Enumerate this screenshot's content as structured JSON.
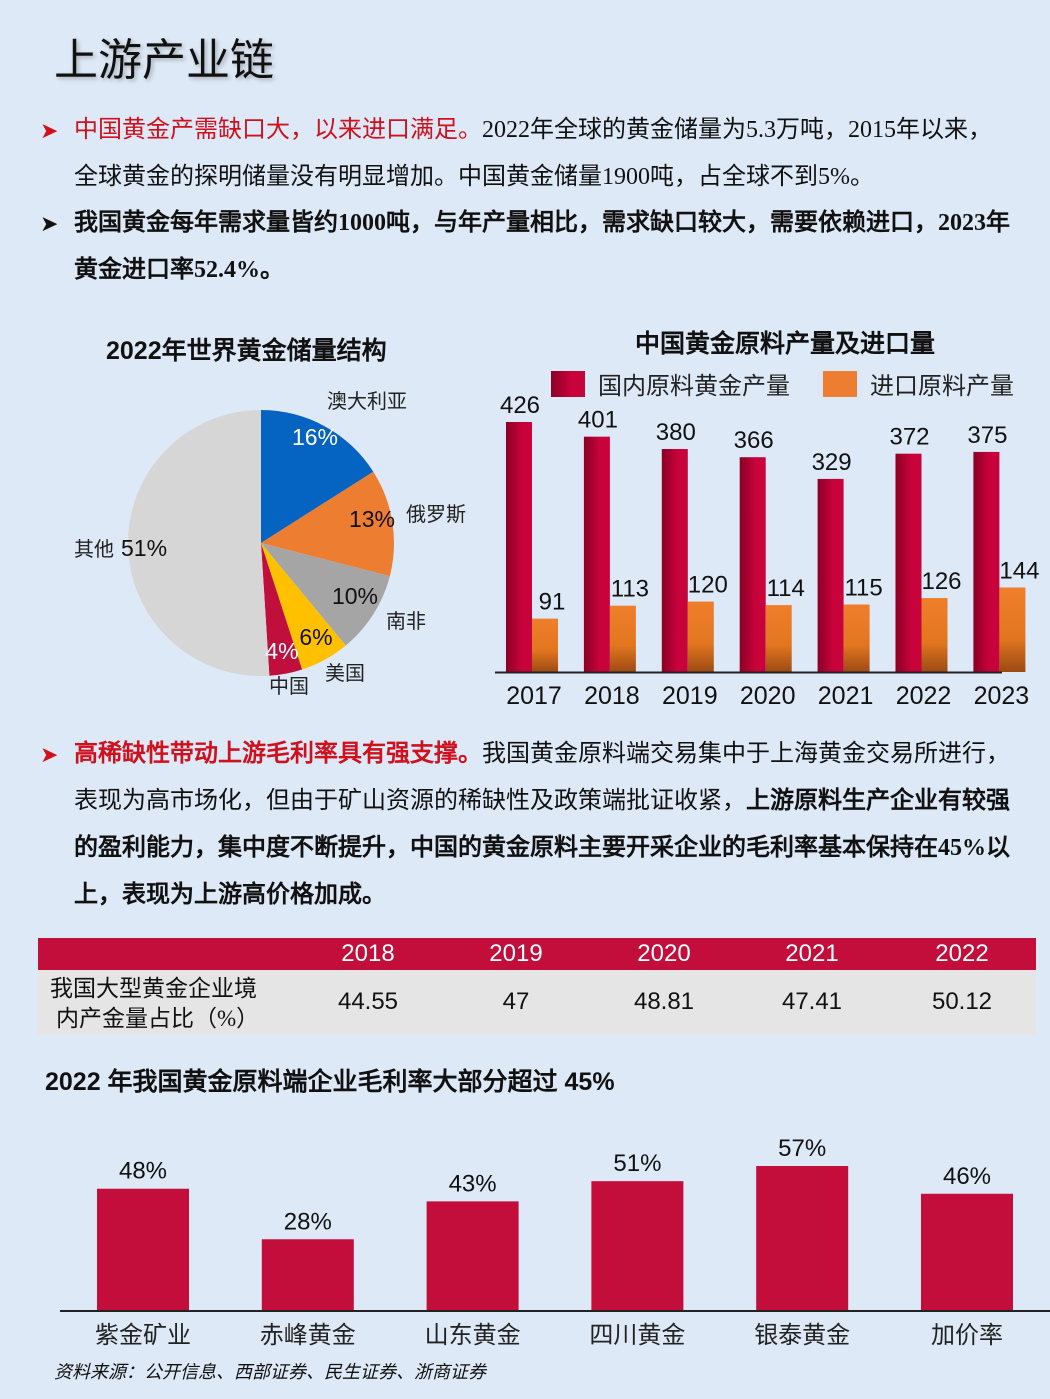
{
  "title": "上游产业链",
  "bullets": [
    {
      "icon": "arrow-right-icon",
      "red": "中国黄金产需缺口大，以来进口满足。",
      "normal": "2022年全球的黄金储量为5.3万吨，2015年以来，全球黄金的探明储量没有明显增加。中国黄金储量1900吨，占全球不到5%。",
      "bold": ""
    },
    {
      "icon": "arrow-right-icon",
      "red": "",
      "normal": "",
      "bold": "我国黄金每年需求量皆约1000吨，与年产量相比，需求缺口较大，需要依赖进口，2023年黄金进口率52.4%。"
    },
    {
      "icon": "arrow-right-icon",
      "red": "高稀缺性带动上游毛利率具有强支撑。",
      "normal": "我国黄金原料端交易集中于上海黄金交易所进行，表现为高市场化，但由于矿山资源的稀缺性及政策端批证收紧，",
      "bold": "上游原料生产企业有较强的盈利能力，集中度不断提升，中国的黄金原料主要开采企业的毛利率基本保持在45%以上，表现为上游高价格加成。"
    }
  ],
  "colors": {
    "red": "#c30d3b",
    "orange": "#ed7d31",
    "blue": "#0563c1",
    "gray": "#a5a5a5",
    "yellow": "#ffc000",
    "lightgray": "#d6d6d6",
    "background": "#dde9f6"
  },
  "chart_data": [
    {
      "type": "pie",
      "title": "2022年世界黄金储量结构",
      "labels": [
        "澳大利亚",
        "俄罗斯",
        "南非",
        "美国",
        "中国",
        "其他"
      ],
      "values": [
        16,
        13,
        10,
        6,
        4,
        51
      ],
      "value_labels": [
        "16%",
        "13%",
        "10%",
        "6%",
        "4%",
        "51%"
      ],
      "colors": [
        "#0563c1",
        "#ed7d31",
        "#a5a5a5",
        "#ffc000",
        "#c00f3c",
        "#d6d6d6"
      ]
    },
    {
      "type": "bar",
      "title": "中国黄金原料产量及进口量",
      "categories": [
        "2017",
        "2018",
        "2019",
        "2020",
        "2021",
        "2022",
        "2023"
      ],
      "series": [
        {
          "name": "国内原料黄金产量",
          "values": [
            426,
            401,
            380,
            366,
            329,
            372,
            375
          ],
          "color": "#c30d3b"
        },
        {
          "name": "进口原料产量",
          "values": [
            91,
            113,
            120,
            114,
            115,
            126,
            144
          ],
          "color": "#ed7d31"
        }
      ],
      "legend": "top",
      "ylim": [
        0,
        426
      ]
    },
    {
      "type": "table",
      "columns": [
        "2018",
        "2019",
        "2020",
        "2021",
        "2022"
      ],
      "row_label": "我国大型黄金企业境内产金量占比（%）",
      "row_label_lines": [
        "我国大型黄金企业境",
        "内产金量占比（%）"
      ],
      "values": [
        "44.55",
        "47",
        "48.81",
        "47.41",
        "50.12"
      ]
    },
    {
      "type": "bar",
      "title": "2022 年我国黄金原料端企业毛利率大部分超过 45%",
      "categories": [
        "紫金矿业",
        "赤峰黄金",
        "山东黄金",
        "四川黄金",
        "银泰黄金",
        "加价率"
      ],
      "values": [
        48,
        28,
        43,
        51,
        57,
        46
      ],
      "value_labels": [
        "48%",
        "28%",
        "43%",
        "51%",
        "57%",
        "46%"
      ],
      "color": "#c30d3b",
      "ylim": [
        0,
        60
      ]
    }
  ],
  "source": "资料来源：公开信息、西部证券、民生证券、浙商证券"
}
